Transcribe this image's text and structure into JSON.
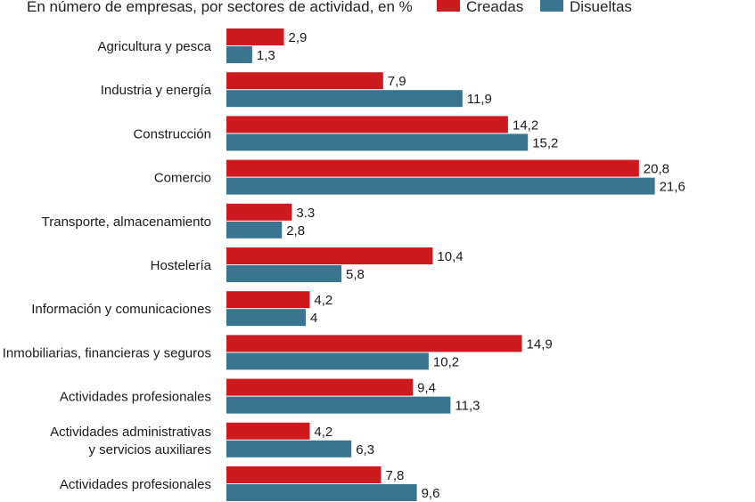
{
  "chart_data": {
    "type": "bar",
    "orientation": "horizontal",
    "subtitle": "En número de empresas, por sectores de actividad, en %",
    "categories": [
      [
        "Agricultura y pesca"
      ],
      [
        "Industria y energía"
      ],
      [
        "Construcción"
      ],
      [
        "Comercio"
      ],
      [
        "Transporte, almacenamiento"
      ],
      [
        "Hostelería"
      ],
      [
        "Información y comunicaciones"
      ],
      [
        "Inmobiliarias, financieras y seguros"
      ],
      [
        "Actividades profesionales"
      ],
      [
        "Actividades administrativas",
        "y servicios auxiliares"
      ],
      [
        "Actividades profesionales"
      ]
    ],
    "series": [
      {
        "name": "Creadas",
        "color": "#cc1a1f",
        "values": [
          2.9,
          7.9,
          14.2,
          20.8,
          3.3,
          10.4,
          4.2,
          14.9,
          9.4,
          4.2,
          7.8
        ],
        "labels": [
          "2,9",
          "7,9",
          "14,2",
          "20,8",
          "3.3",
          "10,4",
          "4,2",
          "14,9",
          "9,4",
          "4,2",
          "7,8"
        ]
      },
      {
        "name": "Disueltas",
        "color": "#3a7590",
        "values": [
          1.3,
          11.9,
          15.2,
          21.6,
          2.8,
          5.8,
          4,
          10.2,
          11.3,
          6.3,
          9.6
        ],
        "labels": [
          "1,3",
          "11,9",
          "15,2",
          "21,6",
          "2,8",
          "5,8",
          "4",
          "10,2",
          "11,3",
          "6,3",
          "9,6"
        ]
      }
    ],
    "legend": {
      "position": "top-right"
    },
    "grid": false
  }
}
